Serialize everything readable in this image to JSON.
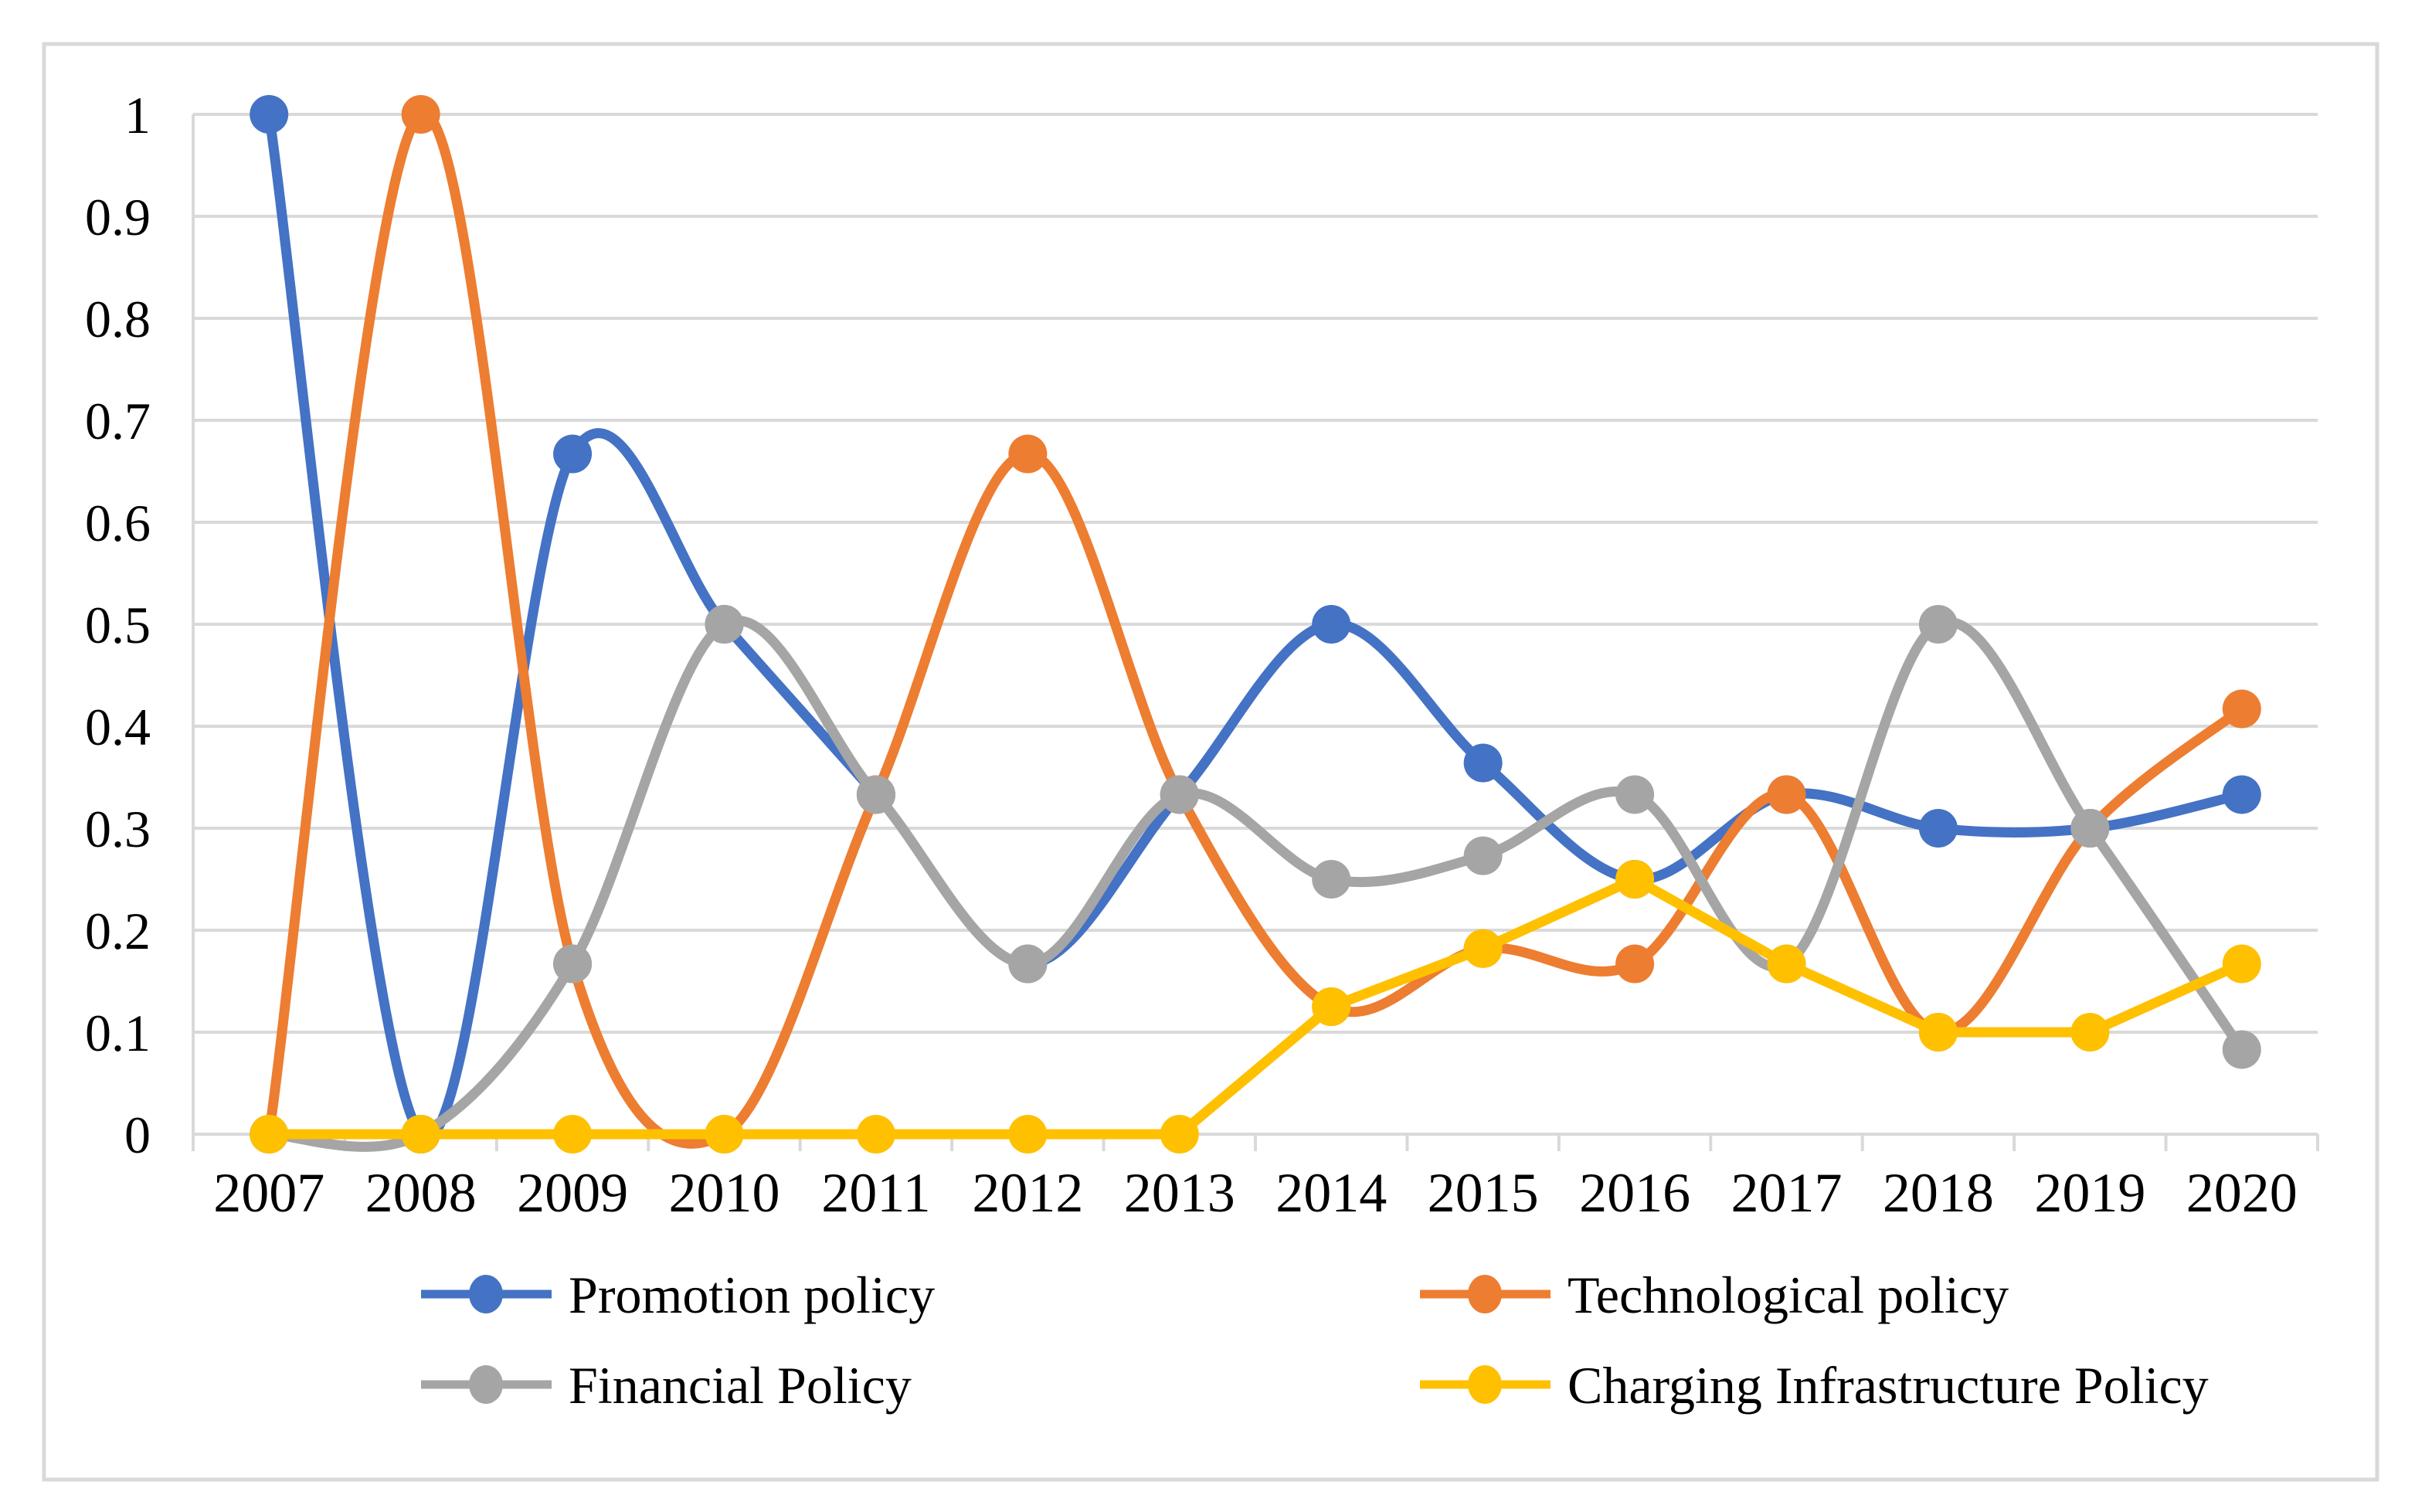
{
  "chart_data": {
    "type": "line",
    "title": "",
    "xlabel": "",
    "ylabel": "",
    "x": [
      "2007",
      "2008",
      "2009",
      "2010",
      "2011",
      "2012",
      "2013",
      "2014",
      "2015",
      "2016",
      "2017",
      "2018",
      "2019",
      "2020"
    ],
    "series": [
      {
        "name": "Promotion policy",
        "color": "#4472C4",
        "marker": "circle",
        "smooth": true,
        "values": [
          1,
          0,
          0.667,
          0.5,
          0.333,
          0.167,
          0.333,
          0.5,
          0.364,
          0.25,
          0.333,
          0.3,
          0.3,
          0.333
        ]
      },
      {
        "name": "Technological policy",
        "color": "#ED7D31",
        "marker": "circle",
        "smooth": true,
        "values": [
          0,
          1,
          0.167,
          0,
          0.333,
          0.667,
          0.333,
          0.125,
          0.182,
          0.167,
          0.333,
          0.1,
          0.3,
          0.417
        ]
      },
      {
        "name": "Financial Policy",
        "color": "#A5A5A5",
        "marker": "circle",
        "smooth": true,
        "values": [
          0,
          0,
          0.167,
          0.5,
          0.333,
          0.167,
          0.333,
          0.25,
          0.273,
          0.333,
          0.167,
          0.5,
          0.3,
          0.083
        ]
      },
      {
        "name": "Charging Infrastructure Policy",
        "color": "#FFC000",
        "marker": "circle",
        "smooth": false,
        "values": [
          0,
          0,
          0,
          0,
          0,
          0,
          0,
          0.125,
          0.182,
          0.25,
          0.167,
          0.1,
          0.1,
          0.167
        ]
      }
    ],
    "ylim": [
      0,
      1
    ],
    "yticks": {
      "labels": [
        "0",
        "0.1",
        "0.2",
        "0.3",
        "0.4",
        "0.5",
        "0.6",
        "0.7",
        "0.8",
        "0.9",
        "1"
      ],
      "values": [
        0,
        0.1,
        0.2,
        0.3,
        0.4,
        0.5,
        0.6,
        0.7,
        0.8,
        0.9,
        1
      ]
    },
    "grid": "horizontal",
    "legend_position": "bottom",
    "gridline_color": "#D9D9D9",
    "axis_color": "#D9D9D9",
    "border_color": "#D9D9D9",
    "background_color": "#FFFFFF",
    "text_color": "#000000"
  }
}
